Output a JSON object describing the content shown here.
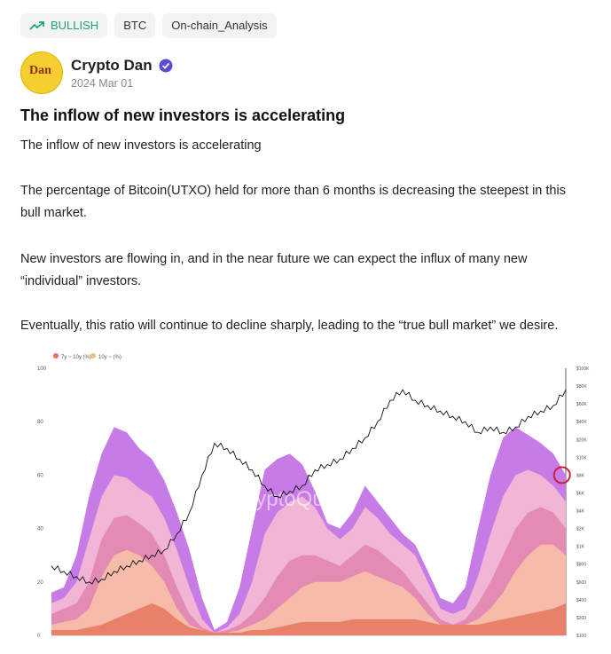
{
  "tags": [
    {
      "label": "BULLISH",
      "icon": "trending-up-icon",
      "color": "#1fa36b"
    },
    {
      "label": "BTC"
    },
    {
      "label": "On-chain_Analysis"
    }
  ],
  "author": {
    "name": "Crypto Dan",
    "avatar_text": "Dan",
    "date": "2024 Mar 01",
    "verified_icon": "verified-badge-icon",
    "verified_color": "#5b4bd6"
  },
  "post": {
    "title": "The inflow of new investors is accelerating",
    "paragraphs": [
      "The inflow of new investors is accelerating",
      "The percentage of Bitcoin(UTXO) held for more than 6 months is decreasing the steepest in this bull market.",
      "New investors are flowing in, and in the near future we can expect the influx of many new “individual” investors.",
      "Eventually, this ratio will continue to decline sharply, leading to the “true bull market” we desire."
    ]
  },
  "chart_data": {
    "type": "area",
    "watermark": "CryptoQuant",
    "legend": [
      {
        "name": "7y ~ 10y (%)",
        "color": "#e8735a"
      },
      {
        "name": "10y ~ (%)",
        "color": "#f3c27a"
      }
    ],
    "y_left_ticks": [
      0,
      20,
      40,
      60,
      80,
      100
    ],
    "y_right_ticks": [
      "$100K",
      "$80K",
      "$60K",
      "$40K",
      "$20K",
      "$10K",
      "$8K",
      "$6K",
      "$4K",
      "$2K",
      "$1K",
      "$800",
      "$600",
      "$400",
      "$200",
      "$100"
    ],
    "ylim": [
      0,
      100
    ],
    "series": [
      {
        "color": "#c77be6",
        "values": [
          16,
          18,
          30,
          52,
          68,
          78,
          76,
          70,
          66,
          58,
          46,
          32,
          14,
          2,
          5,
          18,
          40,
          62,
          66,
          68,
          64,
          54,
          42,
          40,
          46,
          56,
          50,
          44,
          38,
          34,
          24,
          14,
          12,
          18,
          40,
          60,
          74,
          78,
          75,
          72,
          68,
          60
        ]
      },
      {
        "color": "#f1b6d5",
        "values": [
          12,
          14,
          20,
          36,
          52,
          60,
          59,
          55,
          52,
          44,
          32,
          18,
          6,
          1,
          3,
          8,
          20,
          38,
          46,
          50,
          52,
          48,
          40,
          36,
          40,
          48,
          44,
          38,
          34,
          30,
          20,
          10,
          8,
          10,
          22,
          38,
          52,
          60,
          62,
          60,
          56,
          50
        ]
      },
      {
        "color": "#e48bb3",
        "values": [
          8,
          10,
          12,
          20,
          36,
          44,
          45,
          42,
          38,
          30,
          18,
          8,
          3,
          1,
          2,
          4,
          8,
          14,
          22,
          28,
          30,
          30,
          28,
          26,
          30,
          34,
          32,
          28,
          24,
          18,
          12,
          6,
          4,
          6,
          12,
          20,
          30,
          40,
          46,
          48,
          46,
          40
        ]
      },
      {
        "color": "#f6bca9",
        "values": [
          4,
          5,
          6,
          10,
          22,
          30,
          32,
          30,
          26,
          20,
          10,
          4,
          2,
          1,
          1,
          2,
          4,
          6,
          10,
          14,
          18,
          20,
          20,
          20,
          22,
          24,
          22,
          20,
          18,
          14,
          8,
          4,
          3,
          4,
          6,
          10,
          16,
          24,
          30,
          34,
          34,
          30
        ]
      },
      {
        "color": "#e9806a",
        "values": [
          2,
          2,
          2,
          3,
          4,
          6,
          8,
          10,
          12,
          10,
          6,
          3,
          2,
          1,
          1,
          1,
          2,
          2,
          3,
          4,
          5,
          5,
          5,
          5,
          6,
          6,
          6,
          6,
          6,
          6,
          5,
          4,
          4,
          4,
          4,
          5,
          6,
          7,
          8,
          9,
          10,
          12
        ]
      }
    ],
    "price_line": {
      "color": "#111111",
      "values": [
        26,
        24,
        22,
        20,
        21,
        24,
        26,
        28,
        30,
        32,
        38,
        46,
        60,
        72,
        70,
        66,
        62,
        56,
        52,
        54,
        56,
        62,
        64,
        66,
        70,
        74,
        80,
        88,
        92,
        88,
        86,
        84,
        82,
        80,
        76,
        78,
        76,
        78,
        82,
        84,
        86,
        92
      ]
    },
    "highlight_marker": {
      "color": "#d0203a"
    }
  }
}
